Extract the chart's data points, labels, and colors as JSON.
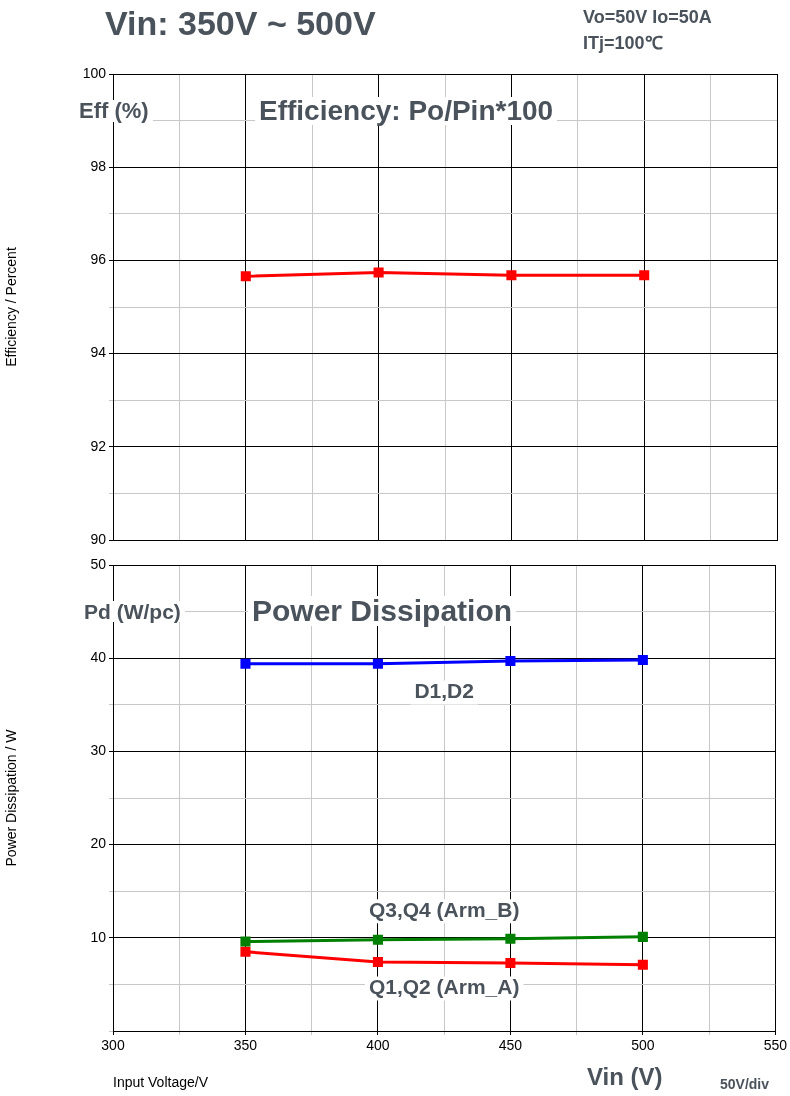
{
  "chart_data": [
    {
      "type": "line",
      "title": "Vin: 350V ~ 500V",
      "ylabel": "Efficiency / Percent",
      "annotations": [
        "Vo=50V  Io=50A",
        "ITj=100℃",
        "Eff (%)",
        "Efficiency: Po/Pin*100"
      ],
      "x": [
        350,
        400,
        450,
        500
      ],
      "series": [
        {
          "color": "#ff0000",
          "values": [
            95.66,
            95.74,
            95.68,
            95.68
          ]
        }
      ],
      "xlim": [
        300,
        550
      ],
      "xticks": [
        300,
        {
          "value": 325,
          "label": null
        },
        350,
        {
          "value": 375,
          "label": null
        },
        400,
        {
          "value": 425,
          "label": null
        },
        450,
        {
          "value": 475,
          "label": null
        },
        500,
        {
          "value": 525,
          "label": null
        },
        550
      ],
      "ylim": [
        90,
        100
      ],
      "yticks": [
        90,
        {
          "value": 91,
          "label": null
        },
        92,
        {
          "value": 93,
          "label": null
        },
        94,
        {
          "value": 95,
          "label": null
        },
        96,
        {
          "value": 97,
          "label": null
        },
        98,
        {
          "value": 99,
          "label": null
        },
        100
      ],
      "tick_labels": "y",
      "grid": true,
      "marker": "square"
    },
    {
      "type": "line",
      "ylabel": "Power Dissipation / W",
      "xlabel": "Input Voltage/V",
      "annotations": [
        "Pd (W/pc)",
        "Power  Dissipation",
        "Vin (V)",
        "50V/div"
      ],
      "x": [
        350,
        400,
        450,
        500
      ],
      "series": [
        {
          "name": "D1,D2",
          "color": "#0000ff",
          "values": [
            39.4,
            39.4,
            39.7,
            39.8
          ]
        },
        {
          "name": "Q3,Q4 (Arm_B)",
          "color": "#008000",
          "values": [
            9.6,
            9.8,
            9.9,
            10.1
          ]
        },
        {
          "name": "Q1,Q2 (Arm_A)",
          "color": "#ff0000",
          "values": [
            8.5,
            7.4,
            7.3,
            7.1
          ]
        }
      ],
      "xlim": [
        300,
        550
      ],
      "xticks": [
        300,
        {
          "value": 325,
          "label": null
        },
        350,
        {
          "value": 375,
          "label": null
        },
        400,
        {
          "value": 425,
          "label": null
        },
        450,
        {
          "value": 475,
          "label": null
        },
        500,
        {
          "value": 525,
          "label": null
        },
        550
      ],
      "ylim": [
        0,
        50
      ],
      "yticks": [
        {
          "value": 0,
          "label": null
        },
        {
          "value": 5,
          "label": null
        },
        10,
        {
          "value": 15,
          "label": null
        },
        20,
        {
          "value": 25,
          "label": null
        },
        30,
        {
          "value": 35,
          "label": null
        },
        40,
        {
          "value": 45,
          "label": null
        },
        50
      ],
      "grid": true,
      "marker": "square"
    }
  ]
}
